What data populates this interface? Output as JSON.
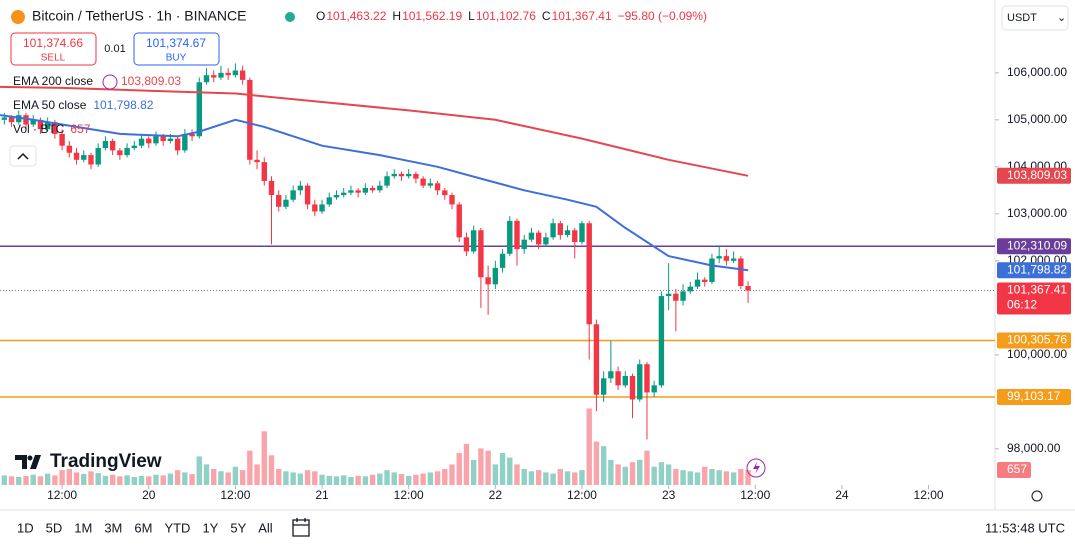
{
  "ui": {
    "symbol": "Bitcoin / TetherUS · 1h · BINANCE",
    "ohlc": [
      {
        "key": "O",
        "value": "101,463.22"
      },
      {
        "key": "H",
        "value": "101,562.19"
      },
      {
        "key": "L",
        "value": "101,102.76"
      },
      {
        "key": "C",
        "value": "101,367.41"
      }
    ],
    "change": "−95.80 (−0.09%)",
    "sell": {
      "price": "101,374.66",
      "label": "SELL"
    },
    "spread": "0.01",
    "buy": {
      "price": "101,374.67",
      "label": "BUY"
    },
    "currency": "USDT",
    "logo": "TradingView",
    "timeframes": [
      "1D",
      "5D",
      "1M",
      "3M",
      "6M",
      "YTD",
      "1Y",
      "5Y",
      "All"
    ],
    "clock": "11:53:48 UTC"
  },
  "chart_data": {
    "type": "candlestick",
    "up_color": "#089981",
    "down_color": "#f23645",
    "xlim": [
      -8.6,
      129.2
    ],
    "xticks": [
      {
        "value": 0,
        "label": "12:00"
      },
      {
        "value": 12,
        "label": "20"
      },
      {
        "value": 24,
        "label": "12:00"
      },
      {
        "value": 36,
        "label": "21"
      },
      {
        "value": 48,
        "label": "12:00"
      },
      {
        "value": 60,
        "label": "22"
      },
      {
        "value": 72,
        "label": "12:00"
      },
      {
        "value": 84,
        "label": "23"
      },
      {
        "value": 96,
        "label": "12:00"
      },
      {
        "value": 108,
        "label": "24"
      },
      {
        "value": 120,
        "label": "12:00"
      }
    ],
    "ylim": [
      97230,
      107550
    ],
    "yticks": [
      {
        "value": 98000,
        "label": "98,000.00"
      },
      {
        "value": 100000,
        "label": "100,000.00"
      },
      {
        "value": 102000,
        "label": "102,000.00"
      },
      {
        "value": 103000,
        "label": "103,000.00"
      },
      {
        "value": 104000,
        "label": "104,000.00"
      },
      {
        "value": 105000,
        "label": "105,000.00"
      },
      {
        "value": 106000,
        "label": "106,000.00"
      }
    ],
    "x": [
      -8,
      -7,
      -6,
      -5,
      -4,
      -3,
      -2,
      -1,
      0,
      1,
      2,
      3,
      4,
      5,
      6,
      7,
      8,
      9,
      10,
      11,
      12,
      13,
      14,
      15,
      16,
      17,
      18,
      19,
      20,
      21,
      22,
      23,
      24,
      25,
      26,
      27,
      28,
      29,
      30,
      31,
      32,
      33,
      34,
      35,
      36,
      37,
      38,
      39,
      40,
      41,
      42,
      43,
      44,
      45,
      46,
      47,
      48,
      49,
      50,
      51,
      52,
      53,
      54,
      55,
      56,
      57,
      58,
      59,
      60,
      61,
      62,
      63,
      64,
      65,
      66,
      67,
      68,
      69,
      70,
      71,
      72,
      73,
      74,
      75,
      76,
      77,
      78,
      79,
      80,
      81,
      82,
      83,
      84,
      85,
      86,
      87,
      88,
      89,
      90,
      91,
      92,
      93,
      94,
      95
    ],
    "ohlc": [
      [
        105000,
        105150,
        104900,
        105050
      ],
      [
        105050,
        105100,
        104850,
        104950
      ],
      [
        104950,
        105200,
        104900,
        105100
      ],
      [
        105100,
        105150,
        104800,
        104900
      ],
      [
        104900,
        105100,
        104850,
        105000
      ],
      [
        105000,
        105050,
        104700,
        104800
      ],
      [
        104800,
        105050,
        104750,
        104950
      ],
      [
        104950,
        105000,
        104600,
        104700
      ],
      [
        104700,
        104800,
        104350,
        104450
      ],
      [
        104450,
        104550,
        104200,
        104300
      ],
      [
        104300,
        104400,
        104050,
        104150
      ],
      [
        104150,
        104350,
        104100,
        104250
      ],
      [
        104250,
        104300,
        103950,
        104050
      ],
      [
        104050,
        104500,
        104000,
        104400
      ],
      [
        104400,
        104650,
        104350,
        104550
      ],
      [
        104550,
        104600,
        104250,
        104350
      ],
      [
        104350,
        104400,
        104150,
        104250
      ],
      [
        104250,
        104500,
        104200,
        104400
      ],
      [
        104400,
        104550,
        104350,
        104450
      ],
      [
        104450,
        104700,
        104400,
        104600
      ],
      [
        104600,
        104650,
        104400,
        104500
      ],
      [
        104500,
        104750,
        104450,
        104650
      ],
      [
        104650,
        104700,
        104450,
        104550
      ],
      [
        104550,
        104700,
        104500,
        104600
      ],
      [
        104600,
        104650,
        104250,
        104350
      ],
      [
        104350,
        104800,
        104300,
        104700
      ],
      [
        104700,
        104800,
        104550,
        104650
      ],
      [
        104650,
        105900,
        104600,
        105800
      ],
      [
        105800,
        106100,
        105750,
        105950
      ],
      [
        105950,
        106050,
        105800,
        105900
      ],
      [
        105900,
        106150,
        105850,
        106000
      ],
      [
        106000,
        106100,
        105850,
        105950
      ],
      [
        105950,
        106200,
        105900,
        106050
      ],
      [
        106050,
        106150,
        105750,
        105850
      ],
      [
        105850,
        105900,
        104050,
        104150
      ],
      [
        104150,
        104350,
        103950,
        104100
      ],
      [
        104100,
        104200,
        103600,
        103700
      ],
      [
        103700,
        103800,
        102350,
        103400
      ],
      [
        103400,
        103500,
        103050,
        103150
      ],
      [
        103150,
        103400,
        103100,
        103300
      ],
      [
        103300,
        103600,
        103250,
        103500
      ],
      [
        103500,
        103700,
        103400,
        103600
      ],
      [
        103600,
        103650,
        103100,
        103200
      ],
      [
        103200,
        103300,
        102950,
        103050
      ],
      [
        103050,
        103300,
        103000,
        103200
      ],
      [
        103200,
        103450,
        103150,
        103350
      ],
      [
        103350,
        103500,
        103300,
        103400
      ],
      [
        103400,
        103550,
        103350,
        103450
      ],
      [
        103450,
        103600,
        103400,
        103500
      ],
      [
        103500,
        103550,
        103350,
        103450
      ],
      [
        103450,
        103650,
        103400,
        103550
      ],
      [
        103550,
        103600,
        103450,
        103500
      ],
      [
        103500,
        103700,
        103450,
        103600
      ],
      [
        103600,
        103900,
        103550,
        103800
      ],
      [
        103800,
        103950,
        103750,
        103850
      ],
      [
        103850,
        103900,
        103700,
        103800
      ],
      [
        103800,
        103950,
        103750,
        103850
      ],
      [
        103850,
        103900,
        103650,
        103750
      ],
      [
        103750,
        103800,
        103550,
        103600
      ],
      [
        103600,
        103750,
        103550,
        103650
      ],
      [
        103650,
        103700,
        103400,
        103500
      ],
      [
        103500,
        103550,
        103300,
        103400
      ],
      [
        103400,
        103450,
        103100,
        103200
      ],
      [
        103200,
        103250,
        102400,
        102500
      ],
      [
        102500,
        102600,
        102100,
        102200
      ],
      [
        102200,
        102750,
        102150,
        102650
      ],
      [
        102650,
        102700,
        101000,
        101650
      ],
      [
        101650,
        101900,
        100850,
        101500
      ],
      [
        101500,
        102000,
        101400,
        101850
      ],
      [
        101850,
        102250,
        101750,
        102150
      ],
      [
        102150,
        102950,
        102100,
        102850
      ],
      [
        102850,
        102900,
        101900,
        102250
      ],
      [
        102250,
        102550,
        102150,
        102450
      ],
      [
        102450,
        102700,
        102400,
        102600
      ],
      [
        102600,
        102650,
        102250,
        102350
      ],
      [
        102350,
        102600,
        102300,
        102500
      ],
      [
        102500,
        102900,
        102450,
        102800
      ],
      [
        102800,
        102850,
        102450,
        102550
      ],
      [
        102550,
        102750,
        102500,
        102650
      ],
      [
        102650,
        102700,
        102050,
        102400
      ],
      [
        102400,
        102850,
        102350,
        102800
      ],
      [
        102800,
        102850,
        99900,
        100650
      ],
      [
        100650,
        100750,
        98800,
        99150
      ],
      [
        99150,
        99650,
        99000,
        99500
      ],
      [
        99500,
        100300,
        99400,
        99650
      ],
      [
        99650,
        99750,
        99250,
        99350
      ],
      [
        99350,
        99650,
        99300,
        99550
      ],
      [
        99550,
        99600,
        98650,
        99050
      ],
      [
        99050,
        99900,
        99000,
        99800
      ],
      [
        99800,
        99850,
        98200,
        99200
      ],
      [
        99200,
        99450,
        99100,
        99350
      ],
      [
        99350,
        101350,
        99300,
        101250
      ],
      [
        101250,
        101950,
        100950,
        101300
      ],
      [
        101300,
        101400,
        100500,
        101150
      ],
      [
        101150,
        101500,
        101050,
        101350
      ],
      [
        101350,
        101550,
        101300,
        101450
      ],
      [
        101450,
        101750,
        101400,
        101600
      ],
      [
        101600,
        101650,
        101450,
        101550
      ],
      [
        101550,
        102150,
        101500,
        102050
      ],
      [
        102050,
        102300,
        101950,
        102100
      ],
      [
        102100,
        102250,
        101900,
        102000
      ],
      [
        102000,
        102200,
        101950,
        102050
      ],
      [
        102050,
        102100,
        101400,
        101463.22
      ],
      [
        101463.22,
        101562.19,
        101102.76,
        101367.41
      ]
    ],
    "volume": {
      "name": "Vol · BTC",
      "ylim": [
        0,
        3500
      ],
      "last_label": "657",
      "values": [
        420,
        380,
        350,
        400,
        450,
        380,
        500,
        420,
        650,
        700,
        550,
        480,
        600,
        520,
        400,
        450,
        380,
        420,
        350,
        400,
        380,
        450,
        420,
        500,
        650,
        550,
        480,
        1250,
        900,
        700,
        600,
        550,
        800,
        650,
        1500,
        900,
        2350,
        1300,
        700,
        600,
        550,
        500,
        650,
        600,
        450,
        400,
        380,
        420,
        350,
        400,
        380,
        450,
        500,
        650,
        550,
        480,
        400,
        450,
        500,
        550,
        600,
        700,
        900,
        1400,
        1800,
        1100,
        1600,
        1500,
        900,
        1400,
        1200,
        900,
        700,
        600,
        650,
        550,
        500,
        700,
        600,
        550,
        650,
        3350,
        1900,
        1700,
        1100,
        900,
        800,
        1000,
        1100,
        1500,
        800,
        1000,
        900,
        700,
        650,
        600,
        550,
        800,
        700,
        650,
        600,
        550,
        700,
        657
      ]
    },
    "lines": [
      {
        "name": "EMA 200 close",
        "color": "#e5474f",
        "last_label": "103,809.03",
        "x": [
          -8.6,
          0,
          12,
          24,
          36,
          48,
          60,
          72,
          84,
          95
        ],
        "values": [
          105700,
          105680,
          105620,
          105560,
          105380,
          105200,
          105000,
          104600,
          104150,
          103809.03
        ]
      },
      {
        "name": "EMA 50 close",
        "color": "#3d6fd9",
        "last_label": "101,798.82",
        "x": [
          -8.6,
          -4,
          0,
          8,
          16,
          19,
          24,
          28,
          36,
          44,
          52,
          58,
          64,
          70,
          74,
          78,
          84,
          90,
          95
        ],
        "values": [
          105100,
          105000,
          104900,
          104700,
          104650,
          104750,
          105000,
          104850,
          104450,
          104250,
          104000,
          103750,
          103500,
          103300,
          103150,
          102700,
          102100,
          101900,
          101798.82
        ]
      }
    ],
    "price_lines": [
      {
        "value": 102310.09,
        "label": "102,310.09",
        "color": "#6a3d9a"
      },
      {
        "value": 100305.76,
        "label": "100,305.76",
        "color": "#f59c1a"
      },
      {
        "value": 99103.17,
        "label": "99,103.17",
        "color": "#f59c1a"
      }
    ],
    "last_price": {
      "value": 101367.41,
      "label": "101,367.41",
      "countdown": "06:12",
      "color": "#f23645"
    }
  }
}
